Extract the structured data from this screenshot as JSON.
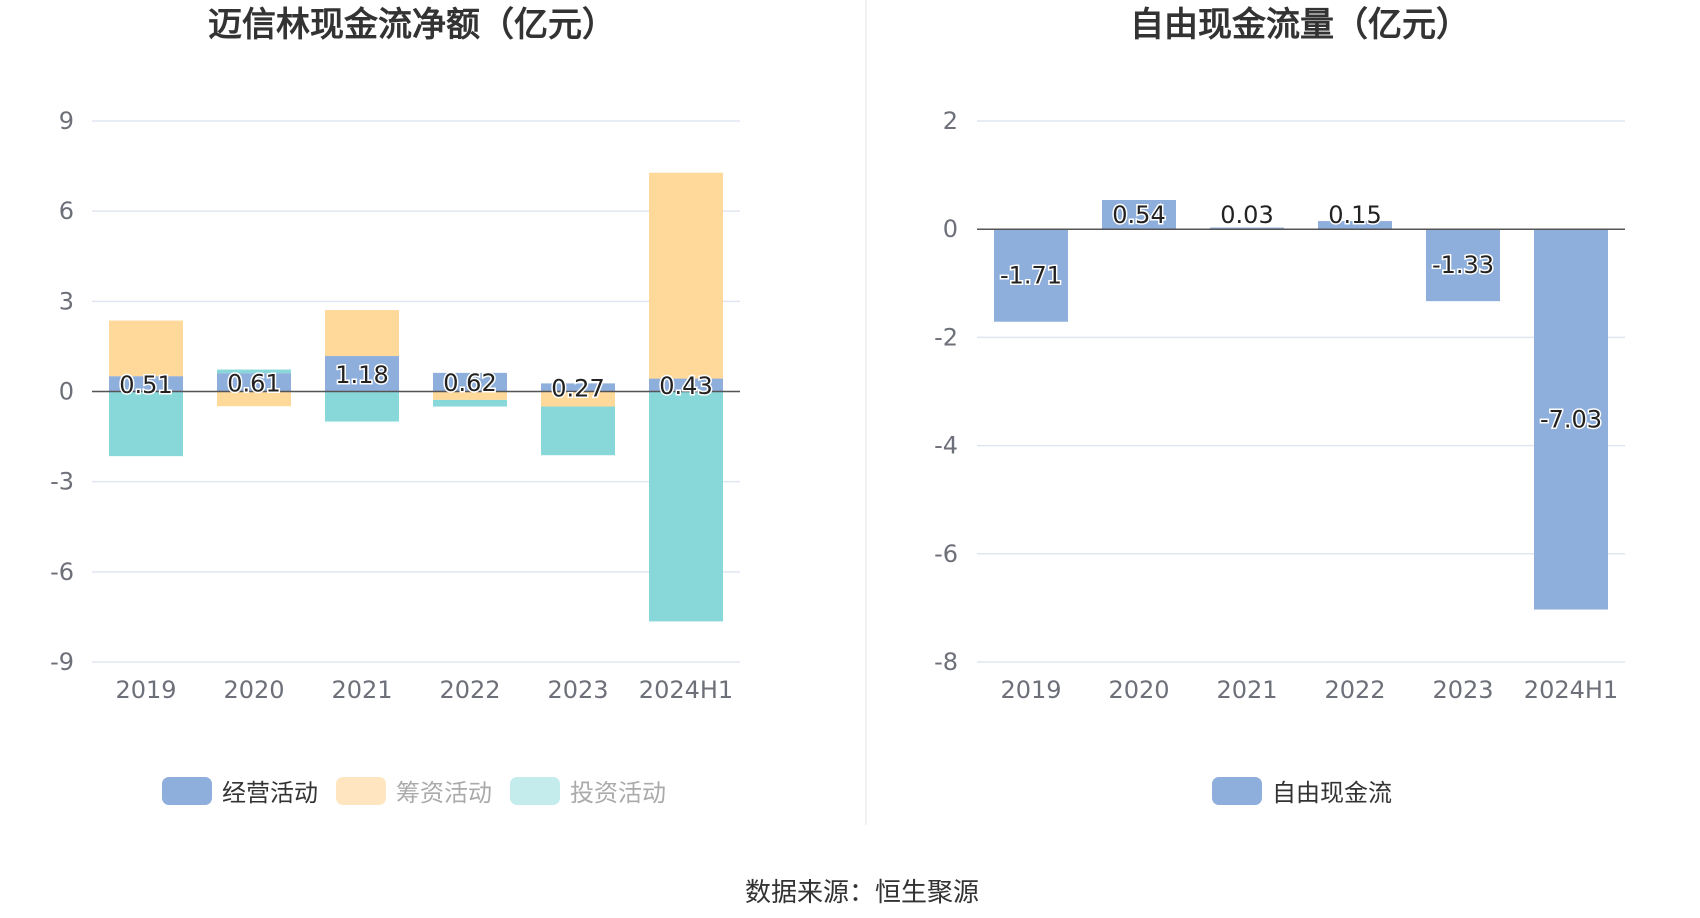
{
  "source_text": "数据来源：恒生聚源",
  "chart_data": [
    {
      "type": "bar",
      "stacked": true,
      "title": "迈信林现金流净额（亿元）",
      "categories": [
        "2019",
        "2020",
        "2021",
        "2022",
        "2023",
        "2024H1"
      ],
      "y_ticks": [
        "9",
        "6",
        "3",
        "0",
        "-3",
        "-6",
        "-9"
      ],
      "ylim": [
        -9,
        9
      ],
      "grid": true,
      "legend_position": "bottom",
      "series": [
        {
          "name": "经营活动",
          "color": "#8eaedb",
          "values": [
            0.51,
            0.61,
            1.18,
            0.62,
            0.27,
            0.43
          ],
          "labels": [
            "0.51",
            "0.61",
            "1.18",
            "0.62",
            "0.27",
            "0.43"
          ]
        },
        {
          "name": "筹资活动",
          "color": "#ffd999",
          "legend_color": "#ffe6c0",
          "values": [
            1.85,
            -0.49,
            1.53,
            -0.28,
            -0.5,
            6.85
          ]
        },
        {
          "name": "投资活动",
          "color": "#88d8da",
          "legend_color": "#c4ecec",
          "values": [
            -2.15,
            0.12,
            -1.0,
            -0.22,
            -1.62,
            -7.65
          ]
        }
      ]
    },
    {
      "type": "bar",
      "title": "自由现金流量（亿元）",
      "categories": [
        "2019",
        "2020",
        "2021",
        "2022",
        "2023",
        "2024H1"
      ],
      "y_ticks": [
        "2",
        "0",
        "-2",
        "-4",
        "-6",
        "-8"
      ],
      "ylim": [
        -8,
        2
      ],
      "grid": true,
      "legend_position": "bottom",
      "series": [
        {
          "name": "自由现金流",
          "color": "#8eaedb",
          "values": [
            -1.71,
            0.54,
            0.03,
            0.15,
            -1.33,
            -7.03
          ],
          "labels": [
            "-1.71",
            "0.54",
            "0.03",
            "0.15",
            "-1.33",
            "-7.03"
          ]
        }
      ]
    }
  ]
}
